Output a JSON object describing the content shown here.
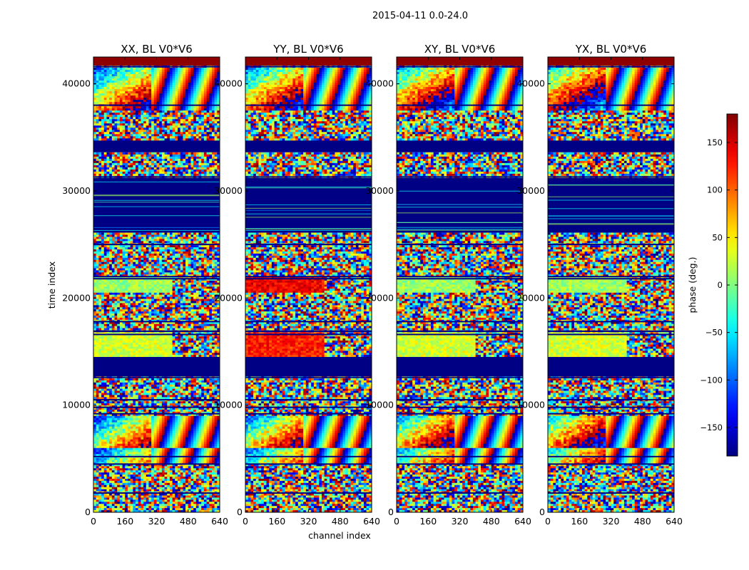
{
  "chart_data": {
    "type": "heatmap",
    "suptitle": "2015-04-11 0.0-24.0",
    "xlabel": "channel index",
    "ylabel": "time index",
    "xlim": [
      0,
      640
    ],
    "ylim": [
      0,
      42500
    ],
    "xticks": [
      0,
      160,
      320,
      480,
      640
    ],
    "yticks": [
      0,
      10000,
      20000,
      30000,
      40000
    ],
    "panels": [
      {
        "title": "XX, BL V0*V6",
        "pol": "XX"
      },
      {
        "title": "YY, BL V0*V6",
        "pol": "YY"
      },
      {
        "title": "XY, BL V0*V6",
        "pol": "XY"
      },
      {
        "title": "YX, BL V0*V6",
        "pol": "YX"
      }
    ],
    "colorbar": {
      "label": "phase (deg.)",
      "range": [
        -180,
        180
      ],
      "ticks": [
        150,
        100,
        50,
        0,
        -50,
        -100,
        -150
      ],
      "colormap": "jet"
    },
    "bands": [
      {
        "y0": 41700,
        "y1": 42500,
        "kind": "solid",
        "phase": 175
      },
      {
        "y0": 41500,
        "y1": 41700,
        "kind": "noise"
      },
      {
        "y0": 37500,
        "y1": 41500,
        "kind": "fringe"
      },
      {
        "y0": 34700,
        "y1": 37500,
        "kind": "noise"
      },
      {
        "y0": 33600,
        "y1": 34700,
        "kind": "solid",
        "phase": -178
      },
      {
        "y0": 31200,
        "y1": 33600,
        "kind": "noise"
      },
      {
        "y0": 26100,
        "y1": 31200,
        "kind": "solid",
        "phase": -178
      },
      {
        "y0": 22000,
        "y1": 26100,
        "kind": "noise"
      },
      {
        "y0": 20500,
        "y1": 22000,
        "kind": "flat",
        "phase": 10,
        "yy_phase": 140
      },
      {
        "y0": 16800,
        "y1": 20500,
        "kind": "noise"
      },
      {
        "y0": 14500,
        "y1": 16800,
        "kind": "flat",
        "phase": 30,
        "yy_phase": 125
      },
      {
        "y0": 12700,
        "y1": 14500,
        "kind": "solid",
        "phase": -178
      },
      {
        "y0": 9000,
        "y1": 12700,
        "kind": "noise"
      },
      {
        "y0": 6000,
        "y1": 9000,
        "kind": "fringe"
      },
      {
        "y0": 4500,
        "y1": 6000,
        "kind": "fringe"
      },
      {
        "y0": 0,
        "y1": 4500,
        "kind": "noise"
      }
    ],
    "dark_lines": [
      41600,
      38000,
      34500,
      31300,
      26200,
      25000,
      22000,
      21800,
      17800,
      16900,
      16600,
      14200,
      12600,
      10500,
      9800,
      9200,
      5200,
      4500,
      1800
    ],
    "colors": {
      "frame": "#000000",
      "background": "#ffffff"
    }
  }
}
